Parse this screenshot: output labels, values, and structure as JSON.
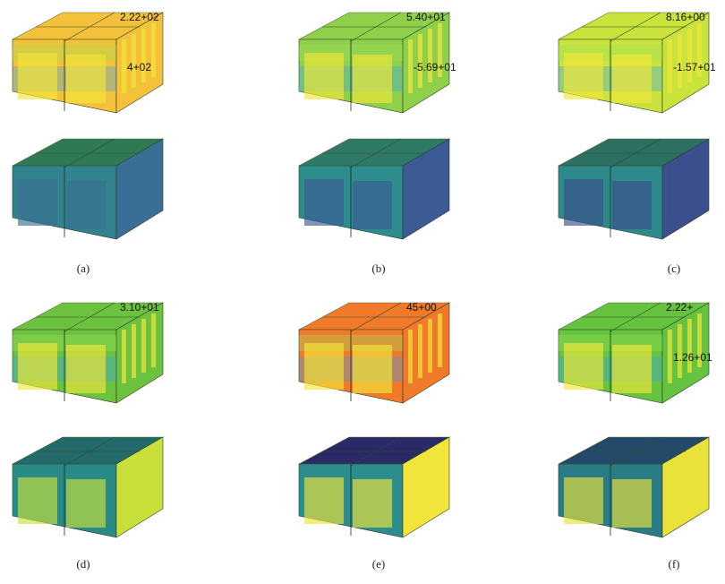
{
  "panels": [
    {
      "caption": "(a)",
      "annotations": [
        "2.22+02",
        "4+02"
      ],
      "top_color": "#f4c23a",
      "bottom_palette": [
        "#2f7a52",
        "#31848e",
        "#3b6e94"
      ],
      "contour_scheme": "jet"
    },
    {
      "caption": "(b)",
      "annotations": [
        "5.40+01",
        "-5.69+01"
      ],
      "top_color": "#8fd04a",
      "bottom_palette": [
        "#2e7a66",
        "#2d8c8c",
        "#3c5a94"
      ],
      "contour_scheme": "jet"
    },
    {
      "caption": "(c)",
      "annotations": [
        "8.16+00",
        "-1.57+01"
      ],
      "top_color": "#c9e33c",
      "bottom_palette": [
        "#2c6f63",
        "#2e8a8a",
        "#3a4f8c"
      ],
      "contour_scheme": "jet"
    },
    {
      "caption": "(d)",
      "annotations": [
        "3.10+01"
      ],
      "top_color": "#6cc23f",
      "bottom_palette": [
        "#236b6b",
        "#2a8a86",
        "#c9e03a"
      ],
      "contour_scheme": "jet"
    },
    {
      "caption": "(e)",
      "annotations": [
        "45+00"
      ],
      "top_color": "#f07a2a",
      "bottom_palette": [
        "#2a2a66",
        "#2d8c8c",
        "#f1e43a"
      ],
      "contour_scheme": "jet"
    },
    {
      "caption": "(f)",
      "annotations": [
        "2.22+",
        "1.26+01"
      ],
      "top_color": "#66c33f",
      "bottom_palette": [
        "#244a6a",
        "#2a7c84",
        "#e9e23a"
      ],
      "contour_scheme": "jet"
    }
  ]
}
